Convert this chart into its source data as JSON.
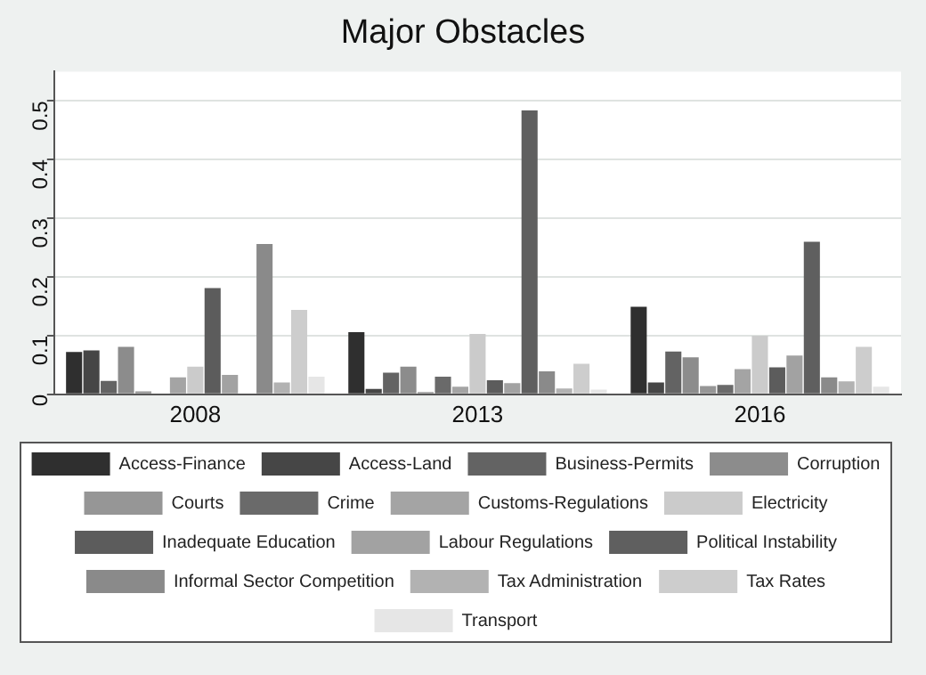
{
  "chart_data": {
    "type": "bar",
    "title": "Major Obstacles",
    "categories": [
      "2008",
      "2013",
      "2016"
    ],
    "series": [
      {
        "name": "Access-Finance",
        "color": "#2f2f2f",
        "values": [
          0.072,
          0.106,
          0.149
        ]
      },
      {
        "name": "Access-Land",
        "color": "#464646",
        "values": [
          0.075,
          0.009,
          0.02
        ]
      },
      {
        "name": "Business-Permits",
        "color": "#636363",
        "values": [
          0.023,
          0.037,
          0.073
        ]
      },
      {
        "name": "Corruption",
        "color": "#8c8c8c",
        "values": [
          0.081,
          0.047,
          0.063
        ]
      },
      {
        "name": "Courts",
        "color": "#969696",
        "values": [
          0.005,
          0.004,
          0.014
        ]
      },
      {
        "name": "Crime",
        "color": "#6a6a6a",
        "values": [
          0,
          0.03,
          0.016
        ]
      },
      {
        "name": "Customs-Regulations",
        "color": "#a4a4a4",
        "values": [
          0.029,
          0.013,
          0.043
        ]
      },
      {
        "name": "Electricity",
        "color": "#cbcbcb",
        "values": [
          0.047,
          0.103,
          0.1
        ]
      },
      {
        "name": "Inadequate Education",
        "color": "#5c5c5c",
        "values": [
          0.181,
          0.024,
          0.046
        ]
      },
      {
        "name": "Labour Regulations",
        "color": "#a2a2a2",
        "values": [
          0.033,
          0.019,
          0.066
        ]
      },
      {
        "name": "Political Instability",
        "color": "#5f5f5f",
        "values": [
          0,
          0.484,
          0.26
        ]
      },
      {
        "name": "Informal Sector Competition",
        "color": "#8a8a8a",
        "values": [
          0.256,
          0.039,
          0.029
        ]
      },
      {
        "name": "Tax Administration",
        "color": "#b2b2b2",
        "values": [
          0.02,
          0.01,
          0.022
        ]
      },
      {
        "name": "Tax Rates",
        "color": "#cdcdcd",
        "values": [
          0.144,
          0.052,
          0.081
        ]
      },
      {
        "name": "Transport",
        "color": "#e6e6e6",
        "values": [
          0.03,
          0.008,
          0.013
        ]
      }
    ],
    "ylim": [
      0,
      0.55
    ],
    "yticks": [
      0,
      0.1,
      0.2,
      0.3,
      0.4,
      0.5
    ],
    "grid": "y",
    "legend": "bottom"
  }
}
